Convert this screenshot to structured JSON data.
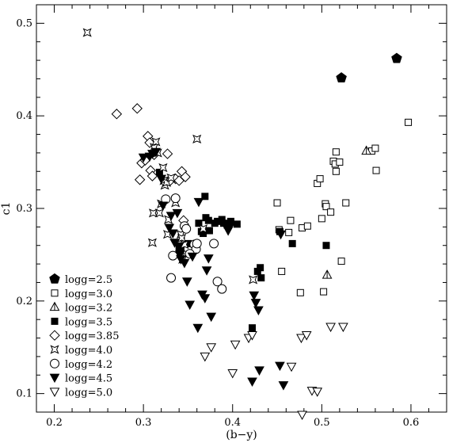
{
  "chart_data": {
    "type": "scatter",
    "title": "",
    "xlabel": "(b−y)",
    "ylabel": "c1",
    "xlim": [
      0.18,
      0.64
    ],
    "ylim": [
      0.08,
      0.52
    ],
    "xticks": [
      0.2,
      0.3,
      0.4,
      0.5,
      0.6
    ],
    "xtick_labels": [
      "0.2",
      "0.3",
      "0.4",
      "0.5",
      "0.6"
    ],
    "yticks": [
      0.1,
      0.2,
      0.3,
      0.4,
      0.5
    ],
    "ytick_labels": [
      "0.1",
      "0.2",
      "0.3",
      "0.4",
      "0.5"
    ],
    "grid": false,
    "legend_position": "bottom-left",
    "series": [
      {
        "name": "logg=2.5",
        "marker": "filled-pentagon",
        "points": [
          [
            0.522,
            0.441
          ],
          [
            0.584,
            0.462
          ]
        ]
      },
      {
        "name": "logg=3.0",
        "marker": "open-square",
        "points": [
          [
            0.45,
            0.306
          ],
          [
            0.452,
            0.277
          ],
          [
            0.455,
            0.232
          ],
          [
            0.463,
            0.274
          ],
          [
            0.465,
            0.287
          ],
          [
            0.476,
            0.209
          ],
          [
            0.478,
            0.279
          ],
          [
            0.484,
            0.281
          ],
          [
            0.495,
            0.327
          ],
          [
            0.498,
            0.332
          ],
          [
            0.5,
            0.289
          ],
          [
            0.502,
            0.21
          ],
          [
            0.504,
            0.305
          ],
          [
            0.505,
            0.302
          ],
          [
            0.51,
            0.296
          ],
          [
            0.513,
            0.351
          ],
          [
            0.515,
            0.348
          ],
          [
            0.516,
            0.34
          ],
          [
            0.516,
            0.361
          ],
          [
            0.52,
            0.35
          ],
          [
            0.522,
            0.243
          ],
          [
            0.527,
            0.306
          ],
          [
            0.556,
            0.362
          ],
          [
            0.56,
            0.365
          ],
          [
            0.561,
            0.341
          ],
          [
            0.597,
            0.393
          ]
        ]
      },
      {
        "name": "logg=3.2",
        "marker": "open-triangle-up",
        "points": [
          [
            0.506,
            0.228
          ],
          [
            0.55,
            0.362
          ]
        ]
      },
      {
        "name": "logg=3.5",
        "marker": "filled-square",
        "points": [
          [
            0.318,
            0.339
          ],
          [
            0.34,
            0.258
          ],
          [
            0.342,
            0.255
          ],
          [
            0.35,
            0.262
          ],
          [
            0.362,
            0.284
          ],
          [
            0.365,
            0.275
          ],
          [
            0.367,
            0.273
          ],
          [
            0.369,
            0.313
          ],
          [
            0.37,
            0.29
          ],
          [
            0.373,
            0.287
          ],
          [
            0.374,
            0.276
          ],
          [
            0.38,
            0.284
          ],
          [
            0.383,
            0.286
          ],
          [
            0.388,
            0.288
          ],
          [
            0.39,
            0.284
          ],
          [
            0.394,
            0.282
          ],
          [
            0.398,
            0.286
          ],
          [
            0.405,
            0.283
          ],
          [
            0.422,
            0.171
          ],
          [
            0.428,
            0.232
          ],
          [
            0.431,
            0.236
          ],
          [
            0.432,
            0.225
          ],
          [
            0.453,
            0.275
          ],
          [
            0.467,
            0.262
          ],
          [
            0.505,
            0.26
          ]
        ]
      },
      {
        "name": "logg=3.85",
        "marker": "open-diamond",
        "points": [
          [
            0.27,
            0.402
          ],
          [
            0.293,
            0.408
          ],
          [
            0.296,
            0.331
          ],
          [
            0.298,
            0.349
          ],
          [
            0.302,
            0.352
          ],
          [
            0.305,
            0.378
          ],
          [
            0.307,
            0.371
          ],
          [
            0.308,
            0.341
          ],
          [
            0.31,
            0.335
          ],
          [
            0.312,
            0.358
          ],
          [
            0.327,
            0.359
          ],
          [
            0.33,
            0.33
          ],
          [
            0.336,
            0.332
          ],
          [
            0.34,
            0.33
          ],
          [
            0.343,
            0.34
          ],
          [
            0.347,
            0.334
          ],
          [
            0.345,
            0.287
          ]
        ]
      },
      {
        "name": "logg=4.0",
        "marker": "open-star",
        "points": [
          [
            0.237,
            0.49
          ],
          [
            0.31,
            0.263
          ],
          [
            0.311,
            0.295
          ],
          [
            0.312,
            0.366
          ],
          [
            0.314,
            0.372
          ],
          [
            0.316,
            0.36
          ],
          [
            0.318,
            0.295
          ],
          [
            0.32,
            0.305
          ],
          [
            0.322,
            0.344
          ],
          [
            0.323,
            0.33
          ],
          [
            0.324,
            0.325
          ],
          [
            0.326,
            0.328
          ],
          [
            0.327,
            0.272
          ],
          [
            0.328,
            0.288
          ],
          [
            0.331,
            0.333
          ],
          [
            0.336,
            0.306
          ],
          [
            0.342,
            0.272
          ],
          [
            0.343,
            0.268
          ],
          [
            0.344,
            0.245
          ],
          [
            0.346,
            0.261
          ],
          [
            0.348,
            0.251
          ],
          [
            0.36,
            0.375
          ],
          [
            0.367,
            0.278
          ],
          [
            0.423,
            0.223
          ]
        ]
      },
      {
        "name": "logg=4.2",
        "marker": "open-circle",
        "points": [
          [
            0.325,
            0.31
          ],
          [
            0.331,
            0.225
          ],
          [
            0.333,
            0.249
          ],
          [
            0.336,
            0.311
          ],
          [
            0.346,
            0.281
          ],
          [
            0.348,
            0.278
          ],
          [
            0.357,
            0.261
          ],
          [
            0.359,
            0.256
          ],
          [
            0.36,
            0.262
          ],
          [
            0.379,
            0.262
          ],
          [
            0.383,
            0.221
          ],
          [
            0.388,
            0.213
          ],
          [
            0.352,
            0.251
          ]
        ]
      },
      {
        "name": "logg=4.5",
        "marker": "filled-triangle-down",
        "points": [
          [
            0.3,
            0.355
          ],
          [
            0.307,
            0.356
          ],
          [
            0.31,
            0.359
          ],
          [
            0.314,
            0.361
          ],
          [
            0.32,
            0.332
          ],
          [
            0.322,
            0.303
          ],
          [
            0.329,
            0.279
          ],
          [
            0.331,
            0.292
          ],
          [
            0.333,
            0.273
          ],
          [
            0.335,
            0.263
          ],
          [
            0.338,
            0.295
          ],
          [
            0.34,
            0.259
          ],
          [
            0.341,
            0.25
          ],
          [
            0.342,
            0.245
          ],
          [
            0.346,
            0.241
          ],
          [
            0.349,
            0.221
          ],
          [
            0.352,
            0.196
          ],
          [
            0.355,
            0.248
          ],
          [
            0.361,
            0.171
          ],
          [
            0.362,
            0.307
          ],
          [
            0.366,
            0.207
          ],
          [
            0.369,
            0.203
          ],
          [
            0.371,
            0.233
          ],
          [
            0.373,
            0.246
          ],
          [
            0.376,
            0.183
          ],
          [
            0.395,
            0.276
          ],
          [
            0.397,
            0.28
          ],
          [
            0.422,
            0.113
          ],
          [
            0.424,
            0.206
          ],
          [
            0.426,
            0.198
          ],
          [
            0.429,
            0.19
          ],
          [
            0.43,
            0.125
          ],
          [
            0.453,
            0.13
          ],
          [
            0.457,
            0.109
          ],
          [
            0.454,
            0.272
          ]
        ]
      },
      {
        "name": "logg=5.0",
        "marker": "open-triangle-down",
        "points": [
          [
            0.369,
            0.14
          ],
          [
            0.376,
            0.15
          ],
          [
            0.4,
            0.122
          ],
          [
            0.403,
            0.153
          ],
          [
            0.418,
            0.16
          ],
          [
            0.422,
            0.163
          ],
          [
            0.466,
            0.129
          ],
          [
            0.477,
            0.16
          ],
          [
            0.478,
            0.077
          ],
          [
            0.483,
            0.163
          ],
          [
            0.489,
            0.103
          ],
          [
            0.495,
            0.102
          ],
          [
            0.51,
            0.172
          ],
          [
            0.524,
            0.172
          ]
        ]
      }
    ]
  }
}
